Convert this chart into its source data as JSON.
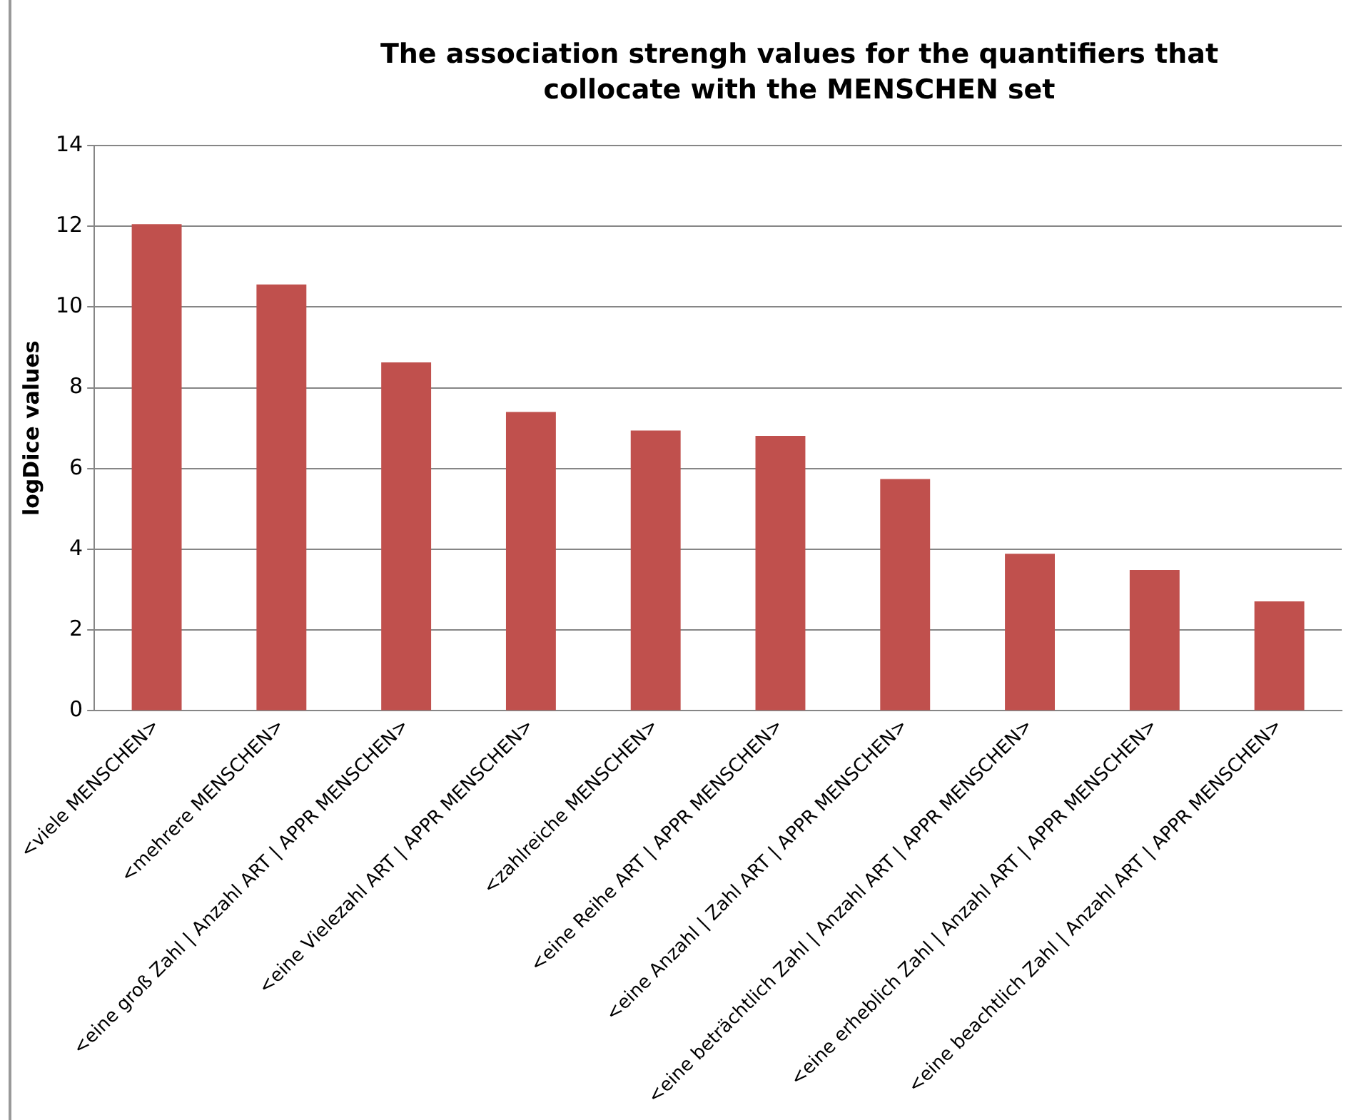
{
  "chart_data": {
    "type": "bar",
    "title": "The association strengh values for the quantifiers that collocate with the MENSCHEN set",
    "ylabel": "logDice values",
    "categories": [
      "<viele MENSCHEN>",
      "<mehrere MENSCHEN>",
      "<eine groß Zahl | Anzahl ART | APPR MENSCHEN>",
      "<eine Vielezahl ART | APPR MENSCHEN>",
      "<zahlreiche MENSCHEN>",
      "<eine Reihe ART | APPR MENSCHEN>",
      "<eine Anzahl | Zahl ART | APPR MENSCHEN>",
      "<eine beträchtlich Zahl | Anzahl ART | APPR MENSCHEN>",
      "<eine erheblich Zahl | Anzahl ART | APPR MENSCHEN>",
      "<eine beachtlich Zahl | Anzahl ART | APPR MENSCHEN>"
    ],
    "values": [
      12.05,
      10.56,
      8.63,
      7.4,
      6.94,
      6.81,
      5.74,
      3.89,
      3.49,
      2.71
    ],
    "color": "#c0504d",
    "ylim": [
      0,
      14
    ],
    "yticks": [
      0,
      2,
      4,
      6,
      8,
      10,
      12,
      14
    ],
    "grid": "y"
  }
}
